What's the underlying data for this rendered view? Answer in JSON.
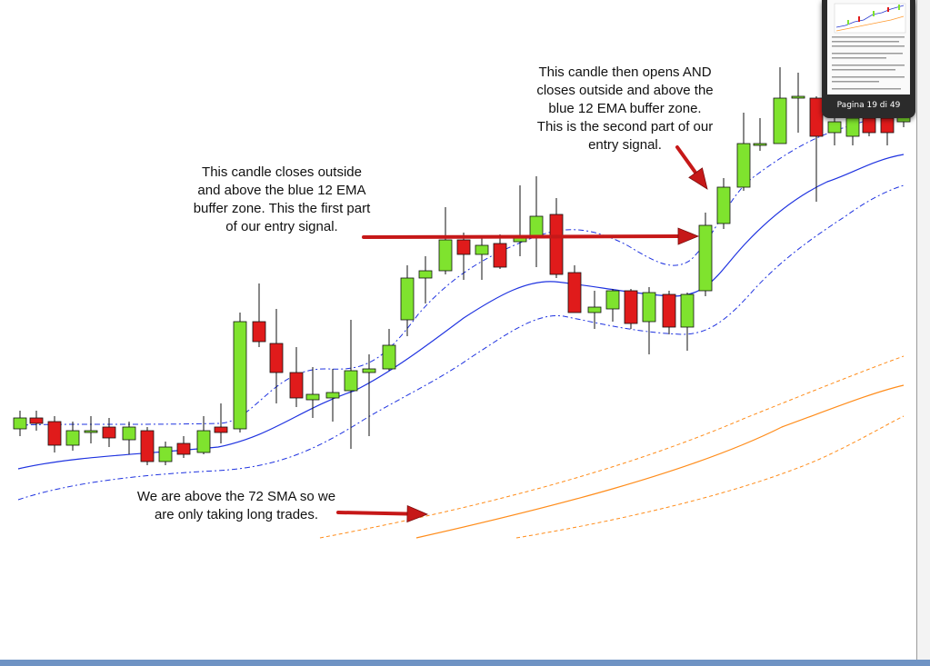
{
  "annotations": {
    "first_signal": [
      "This candle closes outside",
      "and above the blue 12 EMA",
      "buffer zone. This the first part",
      "of our entry signal."
    ],
    "second_signal": [
      "This candle then opens AND",
      "closes outside and above the",
      "blue 12 EMA buffer zone.",
      "This is the second part of our",
      "entry signal."
    ],
    "sma_note": [
      "We are above the 72 SMA so we",
      "are only taking long trades."
    ]
  },
  "thumbnail": {
    "page_label": "Pagina 19 di 49"
  },
  "colors": {
    "bull": "#7fe32e",
    "bear": "#e01b1b",
    "ema": "#1f33e0",
    "sma": "#ff8c1a",
    "arrow": "#c61818"
  }
}
